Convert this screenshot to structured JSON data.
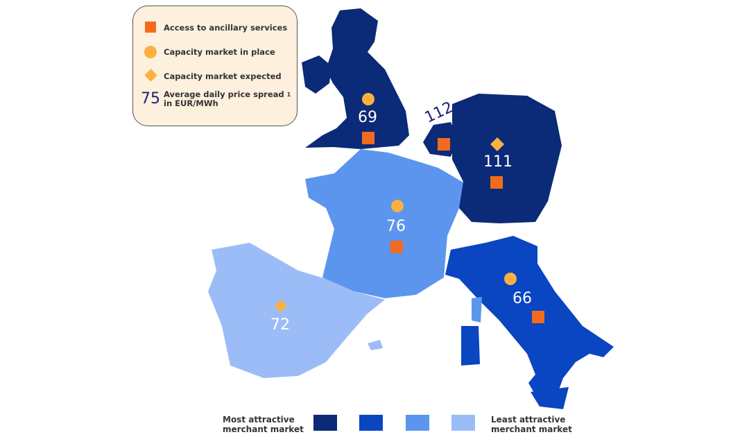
{
  "legend": {
    "ancillary": "Access to ancillary services",
    "capacity_in_place": "Capacity market in place",
    "capacity_expected": "Capacity market expected",
    "spread_example": "75",
    "spread_line1": "Average daily price spread",
    "spread_sup": "1",
    "spread_line2": "in EUR/MWh"
  },
  "scale": {
    "most": [
      "Most attractive",
      "merchant market"
    ],
    "least": [
      "Least attractive",
      "merchant market"
    ],
    "colors": [
      "#0b2a78",
      "#0a45c2",
      "#5c95ee",
      "#9bbcf6"
    ]
  },
  "colors": {
    "square": "#f26b1d",
    "circle": "#fbb040",
    "diamond": "#fbb040"
  },
  "countries": {
    "uk": {
      "spread": "69",
      "markers": [
        "circle",
        "square"
      ],
      "tier": 1
    },
    "netherlands": {
      "spread": "112",
      "markers": [
        "square"
      ],
      "tier": 1
    },
    "germany": {
      "spread": "111",
      "markers": [
        "diamond",
        "square"
      ],
      "tier": 1
    },
    "france": {
      "spread": "76",
      "markers": [
        "circle",
        "square"
      ],
      "tier": 3
    },
    "italy": {
      "spread": "66",
      "markers": [
        "circle",
        "square"
      ],
      "tier": 2
    },
    "spain": {
      "spread": "72",
      "markers": [
        "diamond"
      ],
      "tier": 4
    }
  }
}
